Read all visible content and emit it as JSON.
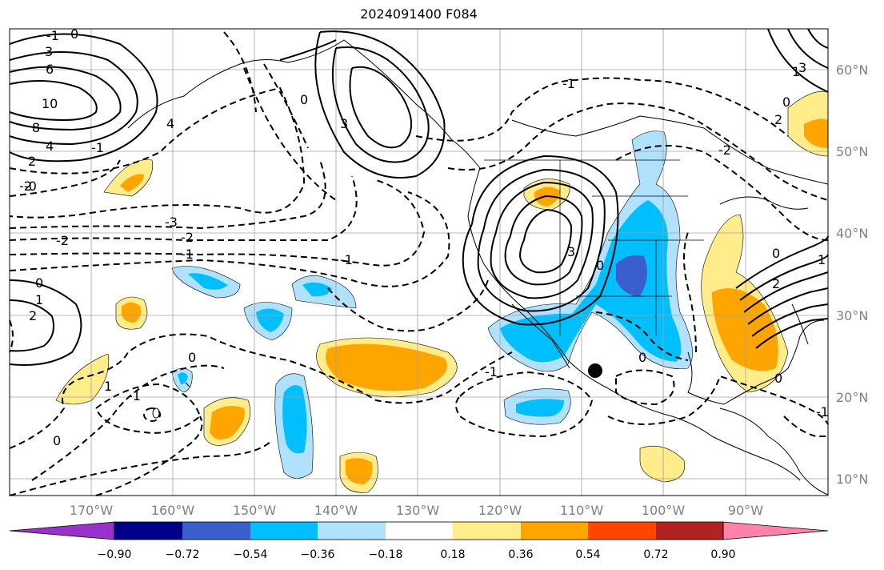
{
  "title": "2024091400 F084",
  "map": {
    "latitude_labels": [
      "60°N",
      "50°N",
      "40°N",
      "30°N",
      "20°N",
      "10°N"
    ],
    "longitude_labels": [
      "170°W",
      "160°W",
      "150°W",
      "140°W",
      "130°W",
      "120°W",
      "110°W",
      "100°W",
      "90°W"
    ],
    "contour_labels": [
      "-1",
      "0",
      "3",
      "6",
      "10",
      "8",
      "4",
      "2",
      "-2",
      "-0",
      "-3",
      "-2",
      "-1",
      "0",
      "-1",
      "-2",
      "0",
      "1",
      "2",
      "-1",
      "0",
      "-1",
      "3",
      "0",
      "4",
      "3",
      "0",
      "0",
      "-1",
      "2",
      "0",
      "1",
      "0",
      "0",
      "1",
      "-1",
      "1",
      "-1",
      "3",
      "-2",
      "2"
    ],
    "marker": "black-dot"
  },
  "colorbar": {
    "ticks": [
      "−0.90",
      "−0.72",
      "−0.54",
      "−0.36",
      "−0.18",
      "0.18",
      "0.36",
      "0.54",
      "0.72",
      "0.90"
    ],
    "colors": [
      "#9932cc",
      "#00008b",
      "#3a5fcd",
      "#00bfff",
      "#b0e2ff",
      "#ffffff",
      "#ffec8b",
      "#ffa500",
      "#ff4500",
      "#b22222",
      "#ff82ab"
    ]
  }
}
